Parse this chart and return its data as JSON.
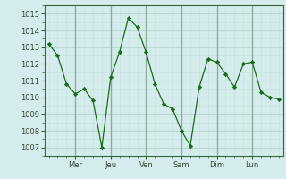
{
  "x": [
    0,
    1,
    2,
    3,
    4,
    5,
    6,
    7,
    8,
    9,
    10,
    11,
    12,
    13,
    14,
    15,
    16,
    17,
    18,
    19,
    20,
    21,
    22,
    23,
    24,
    25,
    26
  ],
  "y": [
    1013.2,
    1012.5,
    1010.8,
    1010.2,
    1010.5,
    1009.8,
    1007.0,
    1011.2,
    1012.7,
    1014.75,
    1014.2,
    1012.7,
    1010.8,
    1009.6,
    1009.3,
    1008.0,
    1007.1,
    1010.6,
    1012.3,
    1012.1,
    1011.4,
    1010.6,
    1012.0,
    1012.1,
    1010.3,
    1010.0,
    1009.9
  ],
  "xtick_positions": [
    3,
    7,
    11,
    15,
    19,
    23
  ],
  "xtick_labels": [
    "Mer",
    "Jeu",
    "Ven",
    "Sam",
    "Dim",
    "Lun"
  ],
  "ytick_min": 1007,
  "ytick_max": 1015,
  "line_color": "#1a6b1a",
  "marker_color": "#1a6b1a",
  "bg_color": "#d4ecec",
  "grid_major_color": "#b8d8d0",
  "grid_minor_color": "#c8e4e0",
  "axis_color": "#336633",
  "xlim": [
    -0.5,
    26.5
  ],
  "ylim": [
    1006.5,
    1015.5
  ]
}
